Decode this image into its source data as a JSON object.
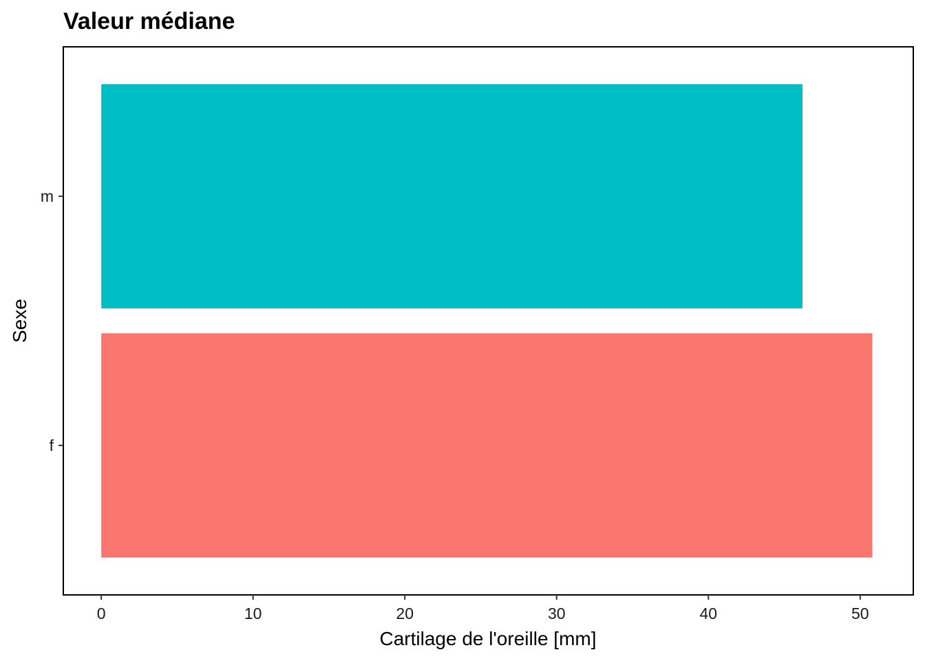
{
  "chart_data": {
    "type": "bar",
    "orientation": "horizontal",
    "title": "Valeur médiane",
    "xlabel": "Cartilage de l'oreille  [mm]",
    "ylabel": "Sexe",
    "categories": [
      "f",
      "m"
    ],
    "values": [
      50.8,
      46.2
    ],
    "colors": [
      "#F8766D",
      "#00BFC4"
    ],
    "xlim": [
      -2.5,
      53.5
    ],
    "xticks": [
      0,
      10,
      20,
      30,
      40,
      50
    ],
    "grid": false,
    "legend": "none"
  }
}
